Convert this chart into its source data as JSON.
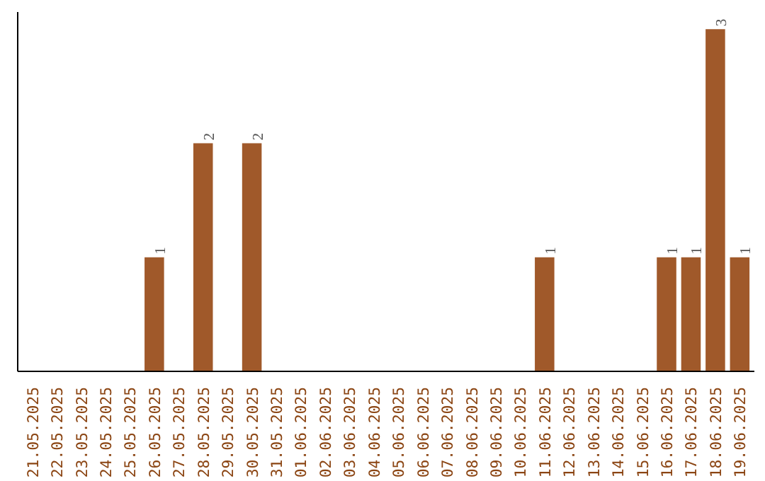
{
  "chart_data": {
    "type": "bar",
    "categories": [
      "21.05.2025",
      "22.05.2025",
      "23.05.2025",
      "24.05.2025",
      "25.05.2025",
      "26.05.2025",
      "27.05.2025",
      "28.05.2025",
      "29.05.2025",
      "30.05.2025",
      "31.05.2025",
      "01.06.2025",
      "02.06.2025",
      "03.06.2025",
      "04.06.2025",
      "05.06.2025",
      "06.06.2025",
      "07.06.2025",
      "08.06.2025",
      "09.06.2025",
      "10.06.2025",
      "11.06.2025",
      "12.06.2025",
      "13.06.2025",
      "14.06.2025",
      "15.06.2025",
      "16.06.2025",
      "17.06.2025",
      "18.06.2025",
      "19.06.2025"
    ],
    "values": [
      0,
      0,
      0,
      0,
      0,
      1,
      0,
      2,
      0,
      2,
      0,
      0,
      0,
      0,
      0,
      0,
      0,
      0,
      0,
      0,
      0,
      1,
      0,
      0,
      0,
      0,
      1,
      1,
      3,
      1
    ],
    "value_labels": [
      null,
      null,
      null,
      null,
      null,
      "1",
      null,
      "2",
      null,
      "2",
      null,
      null,
      null,
      null,
      null,
      null,
      null,
      null,
      null,
      null,
      null,
      "1",
      null,
      null,
      null,
      null,
      "1",
      "1",
      "3",
      "1"
    ],
    "color": "#a0592a",
    "ylim": [
      0,
      3.15
    ],
    "tick_labels": "x",
    "grid": false
  }
}
